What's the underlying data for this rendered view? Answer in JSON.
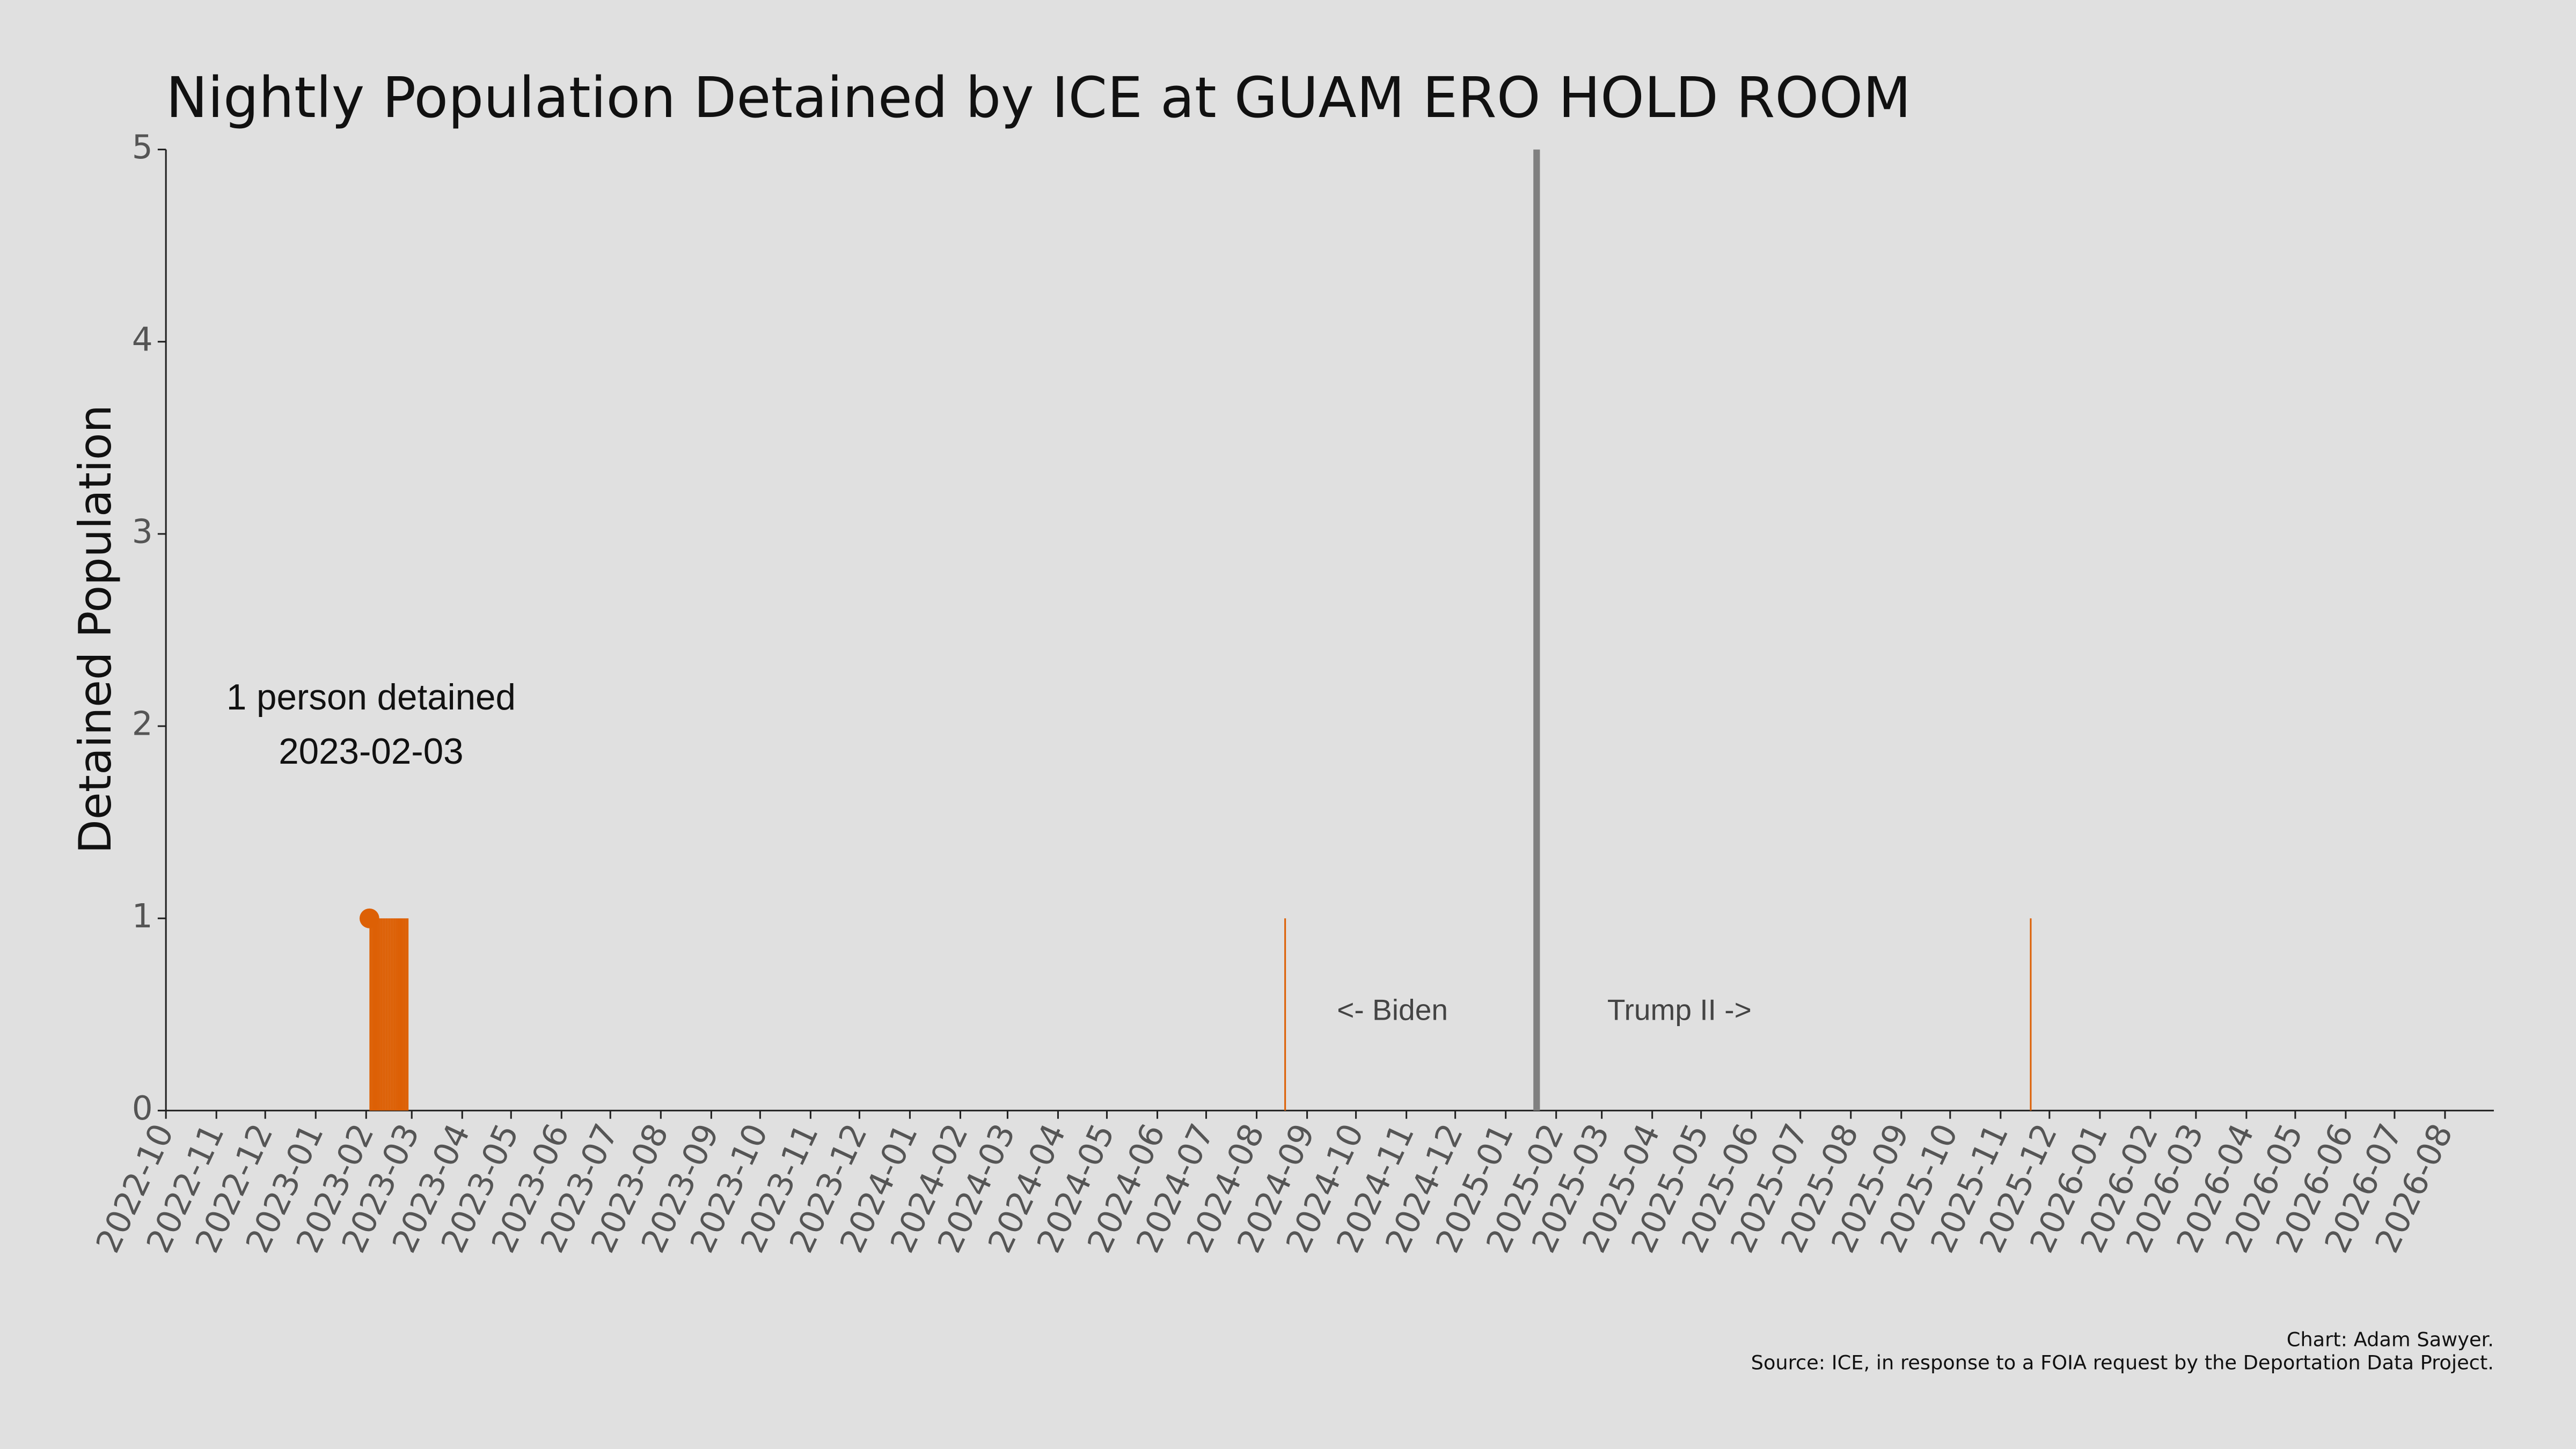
{
  "chart_data": {
    "type": "bar",
    "title": "Nightly Population Detained by ICE at GUAM ERO HOLD ROOM",
    "y_label": "Detained Population",
    "x": [
      "2023-02-03",
      "2023-02-04",
      "2023-02-05",
      "2023-02-06",
      "2023-02-07",
      "2023-02-08",
      "2023-02-09",
      "2023-02-10",
      "2023-02-11",
      "2023-02-12",
      "2023-02-13",
      "2023-02-14",
      "2023-02-15",
      "2023-02-16",
      "2023-02-17",
      "2023-02-18",
      "2023-02-19",
      "2023-02-20",
      "2023-02-21",
      "2023-02-22",
      "2023-02-23",
      "2023-02-24",
      "2023-02-25",
      "2023-02-26",
      "2024-08-18",
      "2025-11-19"
    ],
    "values": [
      1,
      1,
      1,
      1,
      1,
      1,
      1,
      1,
      1,
      1,
      1,
      1,
      1,
      1,
      1,
      1,
      1,
      1,
      1,
      1,
      1,
      1,
      1,
      1,
      1,
      1
    ],
    "color": "#dd6005",
    "xlim": [
      "2022-10-01",
      "2026-08-31"
    ],
    "xticks": [
      "2022-10",
      "2022-11",
      "2022-12",
      "2023-01",
      "2023-02",
      "2023-03",
      "2023-04",
      "2023-05",
      "2023-06",
      "2023-07",
      "2023-08",
      "2023-09",
      "2023-10",
      "2023-11",
      "2023-12",
      "2024-01",
      "2024-02",
      "2024-03",
      "2024-04",
      "2024-05",
      "2024-06",
      "2024-07",
      "2024-08",
      "2024-09",
      "2024-10",
      "2024-11",
      "2024-12",
      "2025-01",
      "2025-02",
      "2025-03",
      "2025-04",
      "2025-05",
      "2025-06",
      "2025-07",
      "2025-08",
      "2025-09",
      "2025-10",
      "2025-11",
      "2025-12",
      "2026-01",
      "2026-02",
      "2026-03",
      "2026-04",
      "2026-05",
      "2026-06",
      "2026-07",
      "2026-08"
    ],
    "ylim": [
      0,
      5
    ],
    "yticks": [
      0,
      1,
      2,
      3,
      4,
      5
    ],
    "grid": false,
    "vline": {
      "x": "2025-01-20",
      "color": "#808080",
      "left_label": "<- Biden",
      "right_label": "Trump II ->"
    },
    "point_annotation": {
      "x": "2023-02-03",
      "y": 1,
      "text": "1 person detained",
      "date_label": "2023-02-03"
    },
    "credit": "Chart: Adam Sawyer.",
    "source": "Source: ICE, in response to a FOIA request by the Deportation Data Project."
  }
}
